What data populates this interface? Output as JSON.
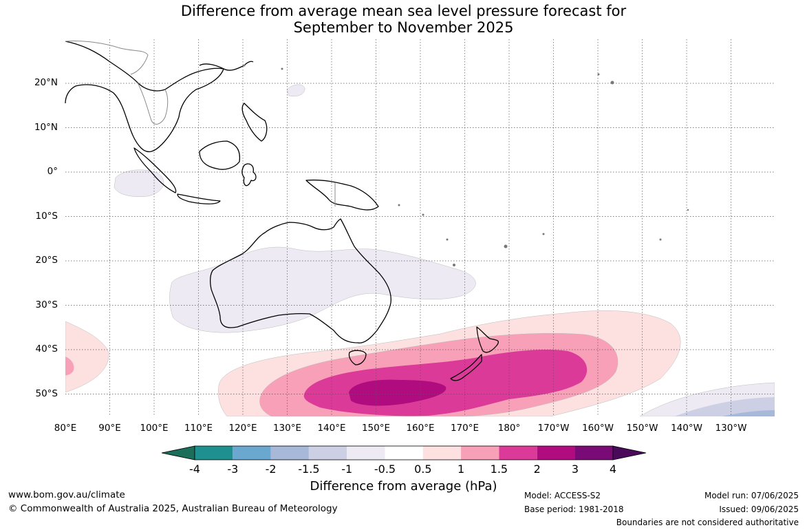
{
  "title": {
    "line1": "Difference from average mean sea level pressure forecast for",
    "line2": "September to November 2025"
  },
  "axes": {
    "lat_labels": [
      "20°N",
      "10°N",
      "0°",
      "10°S",
      "20°S",
      "30°S",
      "40°S",
      "50°S"
    ],
    "lon_labels": [
      "80°E",
      "90°E",
      "100°E",
      "110°E",
      "120°E",
      "130°E",
      "140°E",
      "150°E",
      "160°E",
      "170°E",
      "180°",
      "170°W",
      "160°W",
      "150°W",
      "140°W",
      "130°W"
    ]
  },
  "colorbar": {
    "title": "Difference from average (hPa)",
    "ticks": [
      "-4",
      "-3",
      "-2",
      "-1.5",
      "-1",
      "-0.5",
      "0.5",
      "1",
      "1.5",
      "2",
      "3",
      "4"
    ],
    "colors": [
      "#1a6e5a",
      "#1f9090",
      "#6aa8d0",
      "#a7b8d8",
      "#cdd0e5",
      "#eeeaf3",
      "#ffffff",
      "#fde0e0",
      "#f7a0b8",
      "#dc3a98",
      "#b00c80",
      "#7a0a76",
      "#4a0a5a"
    ]
  },
  "footer": {
    "website": "www.bom.gov.au/climate",
    "copyright": "© Commonwealth of Australia 2025, Australian Bureau of Meteorology",
    "model": "Model: ACCESS-S2",
    "base_period": "Base period: 1981-2018",
    "model_run": "Model run: 07/06/2025",
    "issued": "Issued: 09/06/2025",
    "disclaimer": "Boundaries are not considered authoritative"
  }
}
